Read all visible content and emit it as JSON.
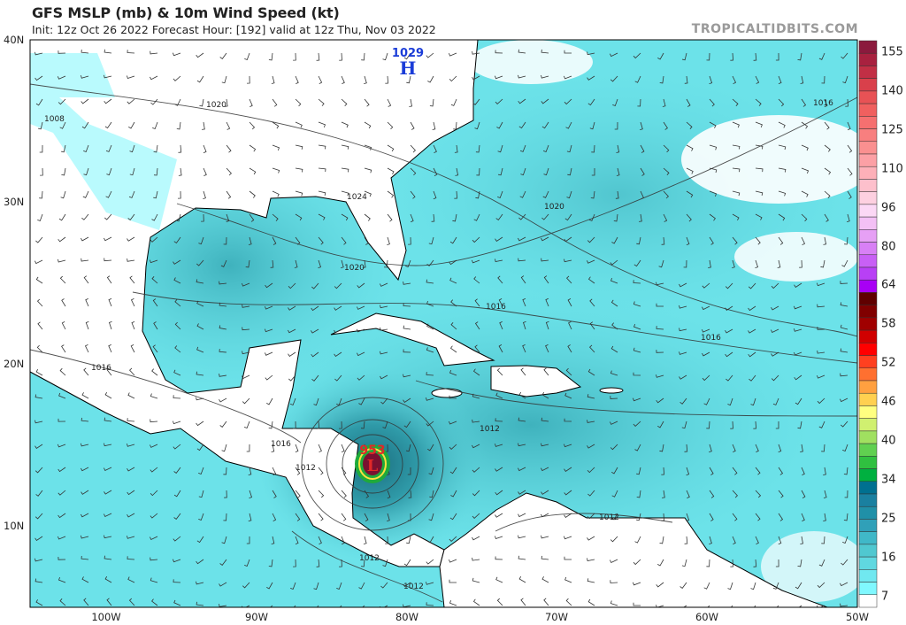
{
  "header": {
    "title": "GFS MSLP (mb) & 10m Wind Speed (kt)",
    "subtitle": "Init: 12z Oct 26 2022   Forecast Hour: [192]   valid at 12z Thu, Nov 03 2022",
    "brand": "TROPICALTIDBITS.COM"
  },
  "map": {
    "lat_labels": [
      "40N",
      "30N",
      "20N",
      "10N"
    ],
    "lon_labels": [
      "100W",
      "90W",
      "80W",
      "70W",
      "60W",
      "50W"
    ],
    "high": {
      "symbol": "H",
      "pressure": "1029"
    },
    "low": {
      "symbol": "L",
      "pressure": "953"
    },
    "isobar_labels": [
      "1020",
      "1024",
      "1020",
      "1016",
      "1016",
      "1016",
      "1008",
      "1016",
      "1012",
      "1012",
      "1012",
      "1012",
      "1012",
      "1016",
      "1020"
    ],
    "colors": {
      "ocean_light": "#80f6fb",
      "ocean_mid": "#5fd6de",
      "ocean_dark": "#3fb2bd",
      "land": "#ffffff",
      "high": "#1a3cd8",
      "low": "#e02828"
    }
  },
  "colorbar": {
    "labels": [
      "155",
      "140",
      "125",
      "110",
      "96",
      "80",
      "64",
      "58",
      "52",
      "46",
      "40",
      "34",
      "25",
      "16",
      "7"
    ],
    "colors": [
      "#8b1a3d",
      "#a8213f",
      "#c22f45",
      "#d9404b",
      "#e85255",
      "#f0605f",
      "#f57070",
      "#f87f7f",
      "#fa9090",
      "#fca0a5",
      "#fdb0b8",
      "#fdc0cc",
      "#fdd0e0",
      "#fbd8f5",
      "#f3c0f5",
      "#e6a0f5",
      "#d880f5",
      "#c860f5",
      "#b840f5",
      "#a800f5",
      "#600000",
      "#800000",
      "#a00000",
      "#d00000",
      "#ff0000",
      "#ff4020",
      "#ff7030",
      "#ffa040",
      "#ffd050",
      "#ffff80",
      "#d0f070",
      "#a0e060",
      "#60d050",
      "#30c040",
      "#00b040",
      "#007090",
      "#1a80a0",
      "#2090a8",
      "#30a0b8",
      "#40b8c8",
      "#50c8d0",
      "#60d8e0",
      "#70e8f0",
      "#80f8ff",
      "#ffffff"
    ]
  }
}
